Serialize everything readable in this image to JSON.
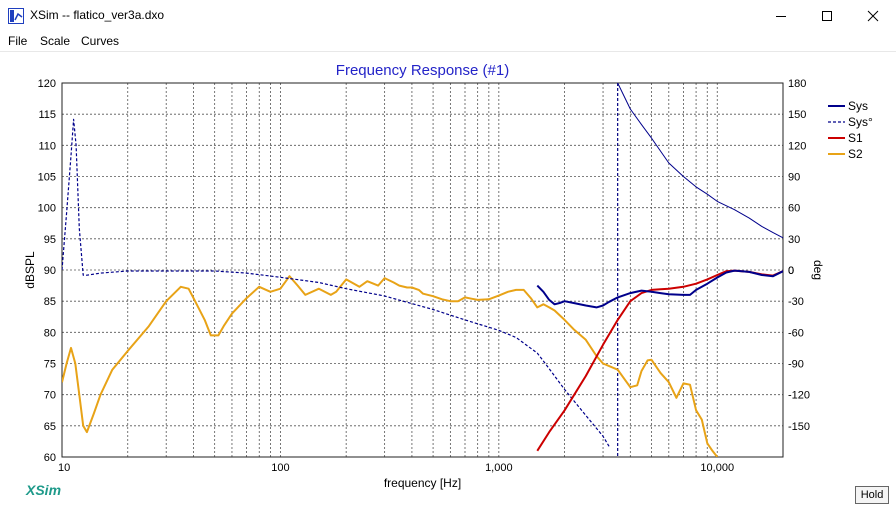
{
  "window": {
    "title": "XSim -- flatico_ver3a.dxo",
    "app_icon": "xsim-app-icon",
    "controls": [
      "minimize-icon",
      "maximize-icon",
      "close-icon"
    ]
  },
  "menu": {
    "items": [
      "File",
      "Scale",
      "Curves"
    ]
  },
  "brand": "XSim",
  "hold_label": "Hold",
  "chart_data": {
    "type": "line",
    "title": "Frequency Response (#1)",
    "xlabel": "frequency [Hz]",
    "ylabel": "dBSPL",
    "y2label": "deg",
    "xscale": "log",
    "xlim": [
      10,
      20000
    ],
    "ylim": [
      60,
      120
    ],
    "y2lim": [
      -180,
      180
    ],
    "grid": true,
    "legend": "right",
    "x_ticks": [
      "10",
      "100",
      "1,000",
      "10,000"
    ],
    "y_ticks": [
      "60",
      "65",
      "70",
      "75",
      "80",
      "85",
      "90",
      "95",
      "100",
      "105",
      "110",
      "115",
      "120"
    ],
    "y2_ticks": [
      "-150",
      "-120",
      "-90",
      "-60",
      "-30",
      "0",
      "30",
      "60",
      "90",
      "120",
      "150",
      "180"
    ],
    "marker_hz": 3500,
    "colors": {
      "Sys": "#00008b",
      "Sys°": "#00008b",
      "S1": "#cc0000",
      "S2": "#e8a317"
    },
    "series": [
      {
        "name": "Sys",
        "axis": "left",
        "style": "solid",
        "x": [
          1500,
          1600,
          1700,
          1800,
          1900,
          2000,
          2200,
          2500,
          2800,
          3000,
          3200,
          3500,
          4000,
          4500,
          5000,
          5500,
          6000,
          7000,
          7500,
          8000,
          9000,
          10000,
          11000,
          12000,
          14000,
          16000,
          18000,
          20000
        ],
        "y": [
          87.5,
          86.5,
          85.2,
          84.5,
          84.7,
          85.0,
          84.7,
          84.3,
          84.0,
          84.3,
          84.9,
          85.6,
          86.3,
          86.7,
          86.5,
          86.3,
          86.1,
          86.0,
          86.0,
          86.8,
          87.8,
          88.8,
          89.6,
          89.9,
          89.7,
          89.2,
          89.0,
          89.8
        ]
      },
      {
        "name": "Sys°",
        "axis": "right",
        "style": "dashed",
        "x": [
          10,
          10.5,
          11,
          11.3,
          11.6,
          12,
          12.5,
          13,
          15,
          20,
          30,
          50,
          70,
          100,
          150,
          200,
          300,
          500,
          700,
          1000,
          1200,
          1500,
          1700,
          2000,
          2500,
          3000,
          3200
        ],
        "y": [
          0,
          55,
          110,
          145,
          120,
          40,
          -5,
          -5,
          -3,
          -1,
          -1,
          -1,
          -3,
          -7,
          -12,
          -18,
          -25,
          -38,
          -48,
          -58,
          -65,
          -80,
          -95,
          -115,
          -140,
          -160,
          -170
        ]
      },
      {
        "name": "Sys",
        "axis": "right",
        "style": "solid-thin",
        "x": [
          3300,
          3500,
          4000,
          4500,
          5000,
          6000,
          7000,
          8000,
          9000,
          10000,
          12000,
          14000,
          16000,
          18000,
          20000
        ],
        "y": [
          185,
          180,
          155,
          140,
          127,
          103,
          90,
          80,
          73,
          66,
          58,
          50,
          42,
          36,
          31
        ]
      },
      {
        "name": "S1",
        "axis": "left",
        "style": "solid",
        "x": [
          1500,
          1700,
          2000,
          2500,
          3000,
          3500,
          4000,
          4500,
          5000,
          5500,
          6000,
          7000,
          8000,
          9000,
          10000,
          11000,
          12000,
          14000,
          16000,
          18000,
          20000
        ],
        "y": [
          61,
          64,
          67.5,
          73,
          78,
          82,
          85,
          86.3,
          86.8,
          86.9,
          87,
          87.3,
          87.8,
          88.5,
          89.2,
          89.8,
          89.9,
          89.7,
          89.3,
          89.1,
          89.8
        ]
      },
      {
        "name": "S2",
        "axis": "left",
        "style": "solid",
        "x": [
          10,
          10.5,
          11,
          11.5,
          12,
          12.5,
          13,
          14,
          15,
          17,
          20,
          25,
          30,
          35,
          38,
          40,
          45,
          48,
          52,
          55,
          60,
          70,
          80,
          90,
          100,
          110,
          120,
          130,
          150,
          170,
          180,
          200,
          230,
          250,
          280,
          300,
          330,
          350,
          380,
          400,
          430,
          450,
          500,
          550,
          600,
          650,
          700,
          750,
          800,
          900,
          1000,
          1100,
          1200,
          1300,
          1400,
          1500,
          1600,
          1700,
          1800,
          2000,
          2200,
          2500,
          2800,
          3000,
          3500,
          4000,
          4300,
          4500,
          4800,
          5000,
          5500,
          6000,
          6500,
          7000,
          7500,
          8000,
          8500,
          9000,
          9500,
          10000
        ],
        "y": [
          72,
          75,
          77.5,
          75,
          70,
          65,
          64,
          67,
          70,
          74,
          77,
          81,
          85,
          87.3,
          87,
          85.5,
          82,
          79.5,
          79.5,
          81,
          83,
          85.5,
          87.3,
          86.5,
          87,
          89,
          87.5,
          86,
          87,
          86,
          86.5,
          88.5,
          87.3,
          88.2,
          87.5,
          88.7,
          88,
          87.5,
          87.2,
          87.2,
          86.8,
          86.2,
          85.8,
          85.3,
          85.0,
          85.0,
          85.6,
          85.4,
          85.2,
          85.3,
          85.9,
          86.5,
          86.8,
          86.8,
          85.5,
          84.0,
          84.5,
          84.0,
          83.5,
          82,
          80.5,
          78.8,
          76.2,
          75.0,
          74.0,
          71.2,
          71.5,
          73.8,
          75.5,
          75.6,
          73.5,
          72.0,
          69.5,
          71.8,
          71.6,
          67.5,
          66.0,
          62.2,
          61.0,
          60.0
        ]
      }
    ]
  }
}
